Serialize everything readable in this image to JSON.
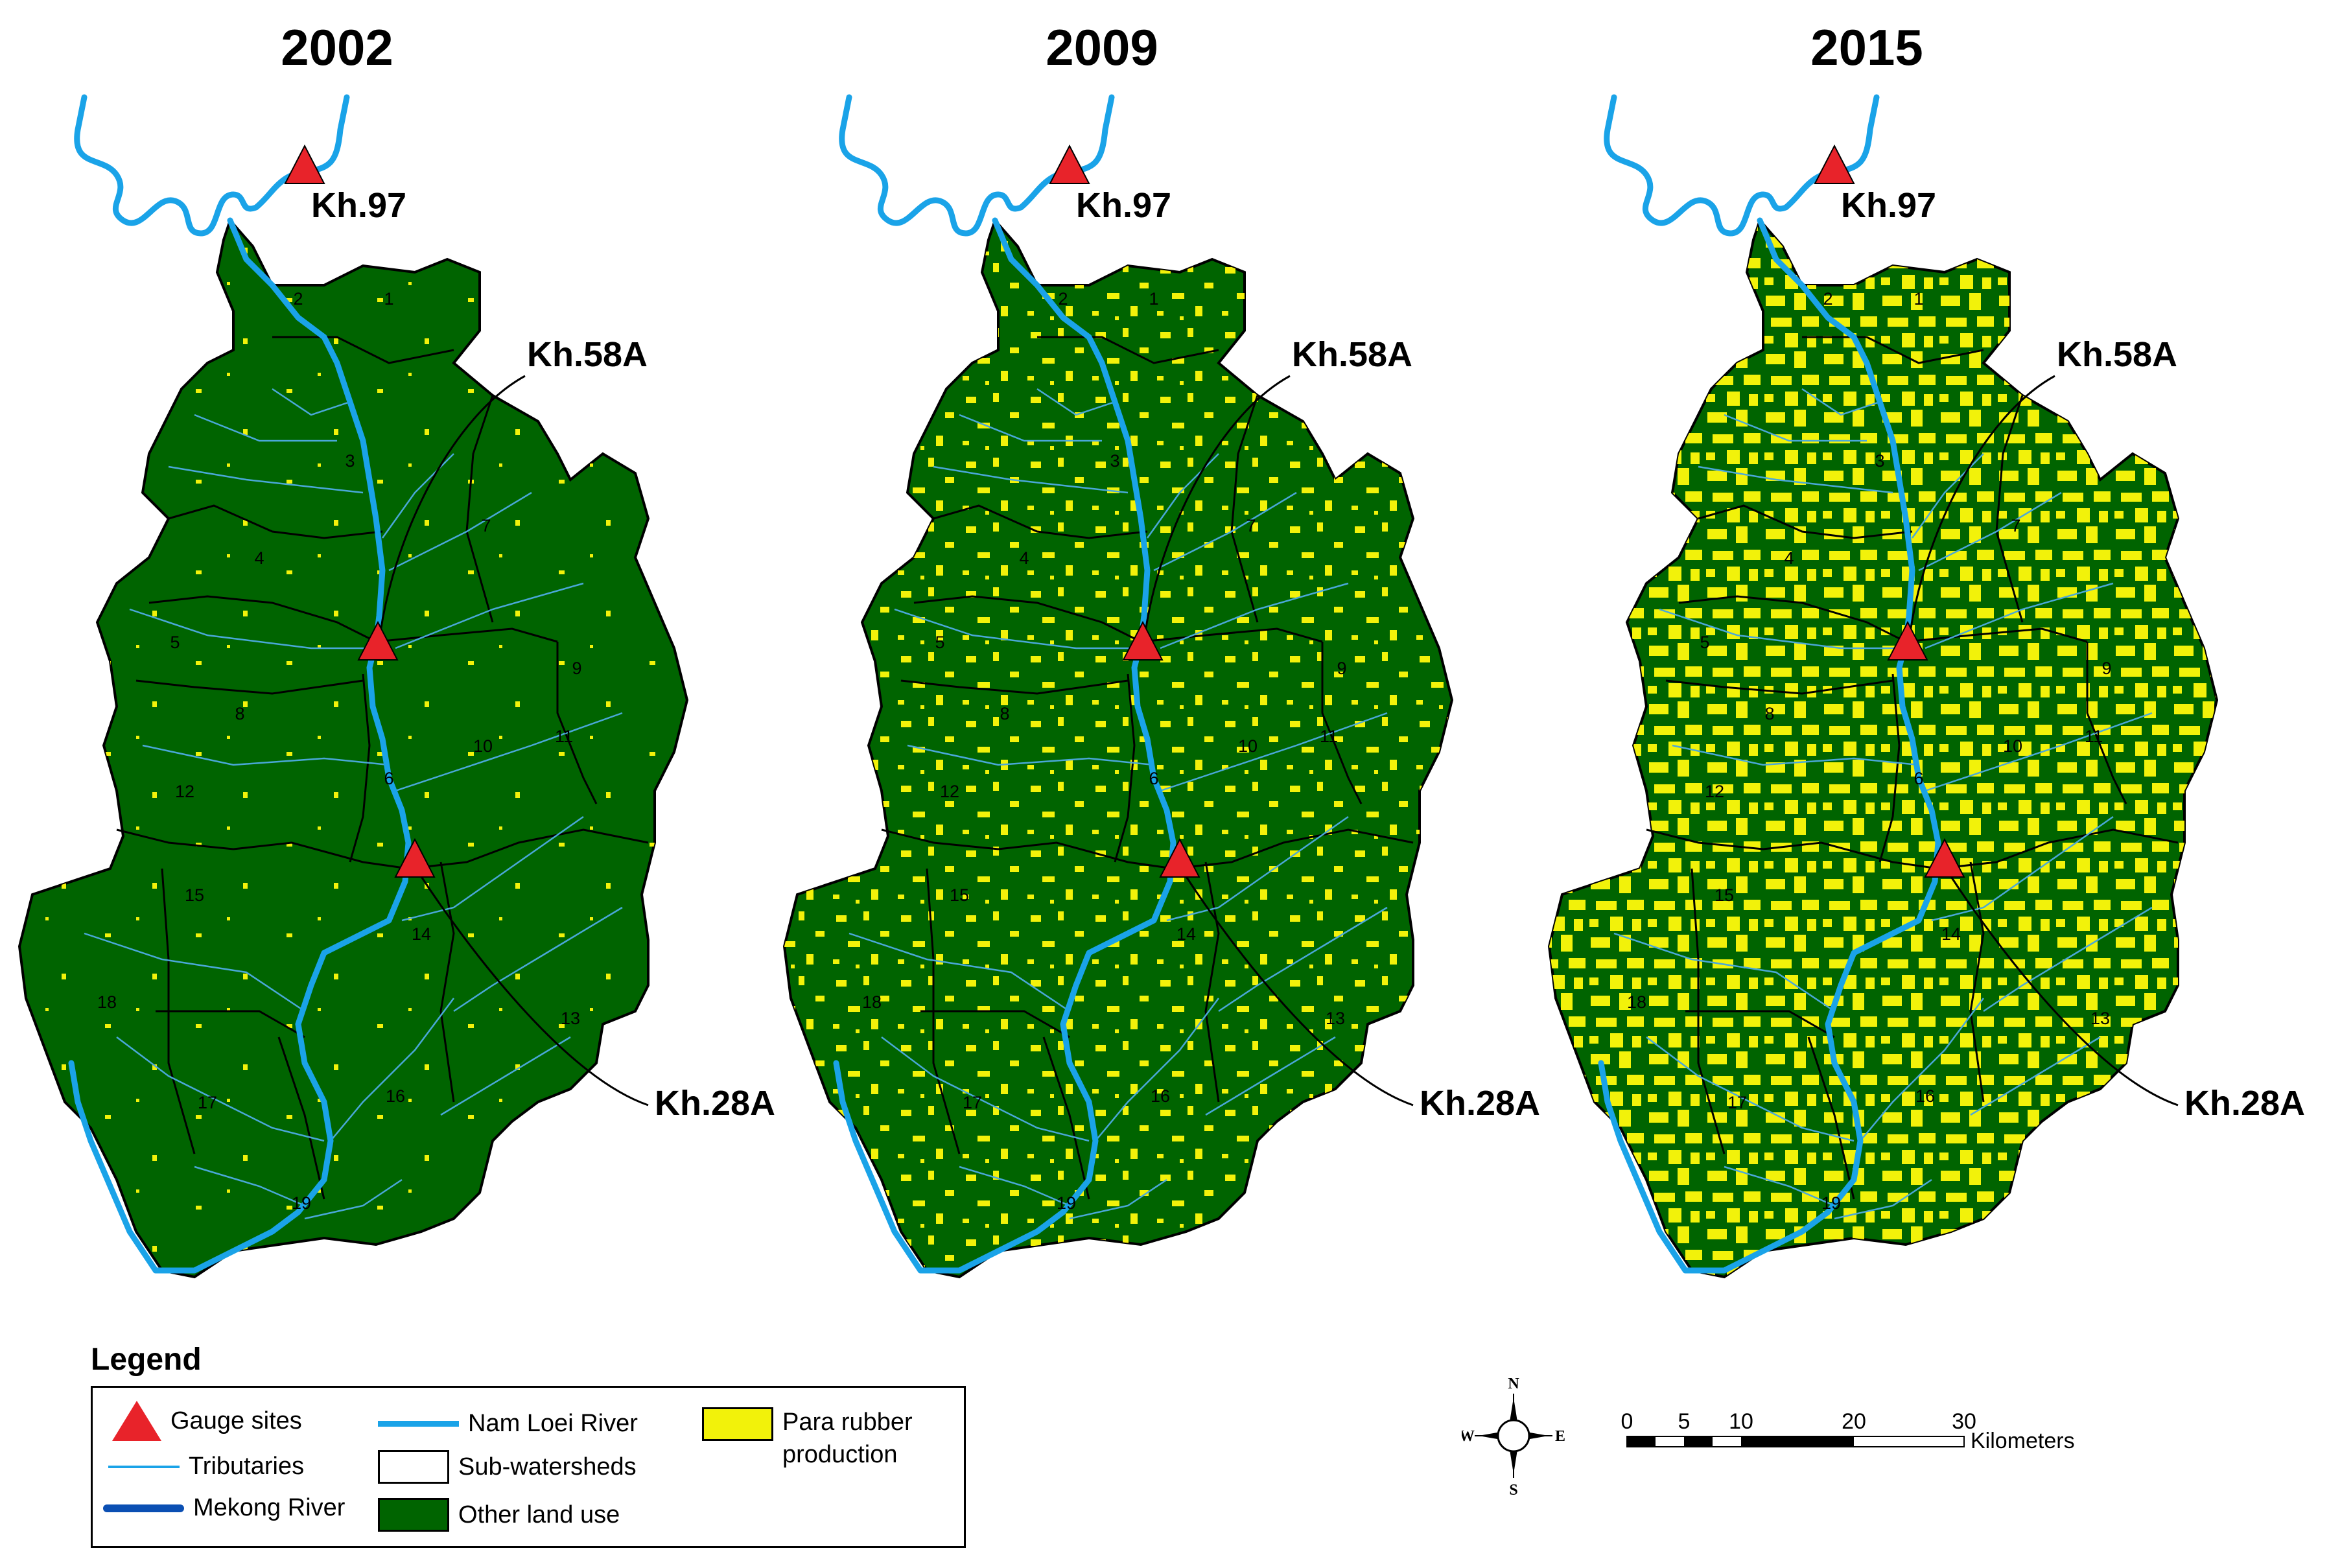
{
  "panels": [
    {
      "year": "2002",
      "rubber_level": "low"
    },
    {
      "year": "2009",
      "rubber_level": "medium"
    },
    {
      "year": "2015",
      "rubber_level": "high"
    }
  ],
  "gauges": [
    "Kh.97",
    "Kh.58A",
    "Kh.28A"
  ],
  "subwatershed_numbers": [
    "1",
    "2",
    "3",
    "4",
    "5",
    "6",
    "7",
    "8",
    "9",
    "10",
    "11",
    "12",
    "13",
    "14",
    "15",
    "16",
    "17",
    "18",
    "19"
  ],
  "legend": {
    "title": "Legend",
    "items": {
      "gauge": "Gauge sites",
      "tributaries": "Tributaries",
      "mekong": "Mekong River",
      "nam_loei": "Nam Loei River",
      "subwatersheds": "Sub-watersheds",
      "other_land": "Other land use",
      "rubber_line1": "Para rubber",
      "rubber_line2": "production"
    }
  },
  "compass": {
    "n": "N",
    "s": "S",
    "e": "E",
    "w": "W"
  },
  "scale": {
    "ticks": [
      "0",
      "5",
      "10",
      "20",
      "30"
    ],
    "unit": "Kilometers"
  },
  "colors": {
    "other_land_use": "#006400",
    "para_rubber": "#f2f20a",
    "river": "#1aa3e8",
    "tributary": "#4aa8d8",
    "mekong": "#0b4fb3",
    "gauge": "#e8232a"
  }
}
